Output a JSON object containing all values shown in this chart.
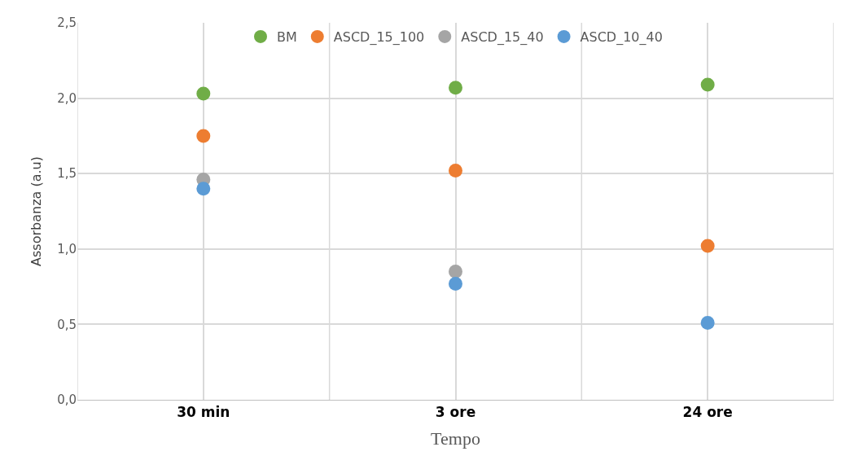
{
  "chart_data": {
    "type": "scatter",
    "xlabel": "Tempo",
    "ylabel": "Assorbanza (a.u)",
    "categories": [
      "30 min",
      "3 ore",
      "24 ore"
    ],
    "series": [
      {
        "name": "BM",
        "color": "#70ad47",
        "values": [
          2.03,
          2.07,
          2.09
        ]
      },
      {
        "name": "ASCD_15_100",
        "color": "#ed7d31",
        "values": [
          1.75,
          1.52,
          1.02
        ]
      },
      {
        "name": "ASCD_15_40",
        "color": "#a5a5a5",
        "values": [
          1.46,
          0.85,
          null
        ]
      },
      {
        "name": "ASCD_10_40",
        "color": "#5b9bd5",
        "values": [
          1.4,
          0.77,
          0.51
        ]
      }
    ],
    "ylim": [
      0,
      2.5
    ],
    "yticks": [
      {
        "value": 0,
        "label": "0,0"
      },
      {
        "value": 0.5,
        "label": "0,5"
      },
      {
        "value": 1,
        "label": "1,0"
      },
      {
        "value": 1.5,
        "label": "1,5"
      },
      {
        "value": 2,
        "label": "2,0"
      },
      {
        "value": 2.5,
        "label": "2,5"
      }
    ],
    "grid": true,
    "legend": "top",
    "marker": "circle"
  }
}
